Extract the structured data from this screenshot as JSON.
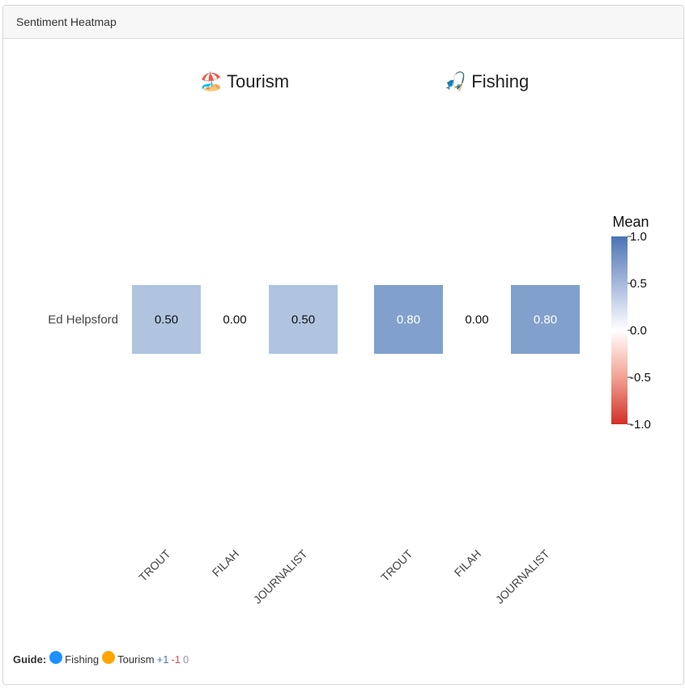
{
  "panel": {
    "title": "Sentiment Heatmap"
  },
  "chart_data": {
    "type": "heatmap",
    "facets": [
      {
        "label": "Tourism",
        "icon": "🏖️",
        "icon_name": "beach-icon"
      },
      {
        "label": "Fishing",
        "icon": "🎣",
        "icon_name": "fishing-icon"
      }
    ],
    "y_categories": [
      "Ed Helpsford"
    ],
    "x_categories": [
      "TROUT",
      "FILAH",
      "JOURNALIST"
    ],
    "values": [
      [
        0.5,
        0.0,
        0.5
      ],
      [
        0.8,
        0.0,
        0.8
      ]
    ],
    "colorbar": {
      "title": "Mean",
      "range": [
        -1.0,
        1.0
      ],
      "ticks": [
        "1.0",
        "0.5",
        "0.0",
        "-0.5",
        "-1.0"
      ],
      "colors": {
        "negative": "#d73027",
        "neutral": "#ffffff",
        "positive": "#4575b4"
      }
    }
  },
  "guide": {
    "label": "Guide:",
    "items": [
      {
        "label": "Fishing",
        "color": "#1e90ff"
      },
      {
        "label": "Tourism",
        "color": "#ffa500"
      }
    ],
    "pos": "+1",
    "neg": "-1",
    "zero": "0"
  }
}
